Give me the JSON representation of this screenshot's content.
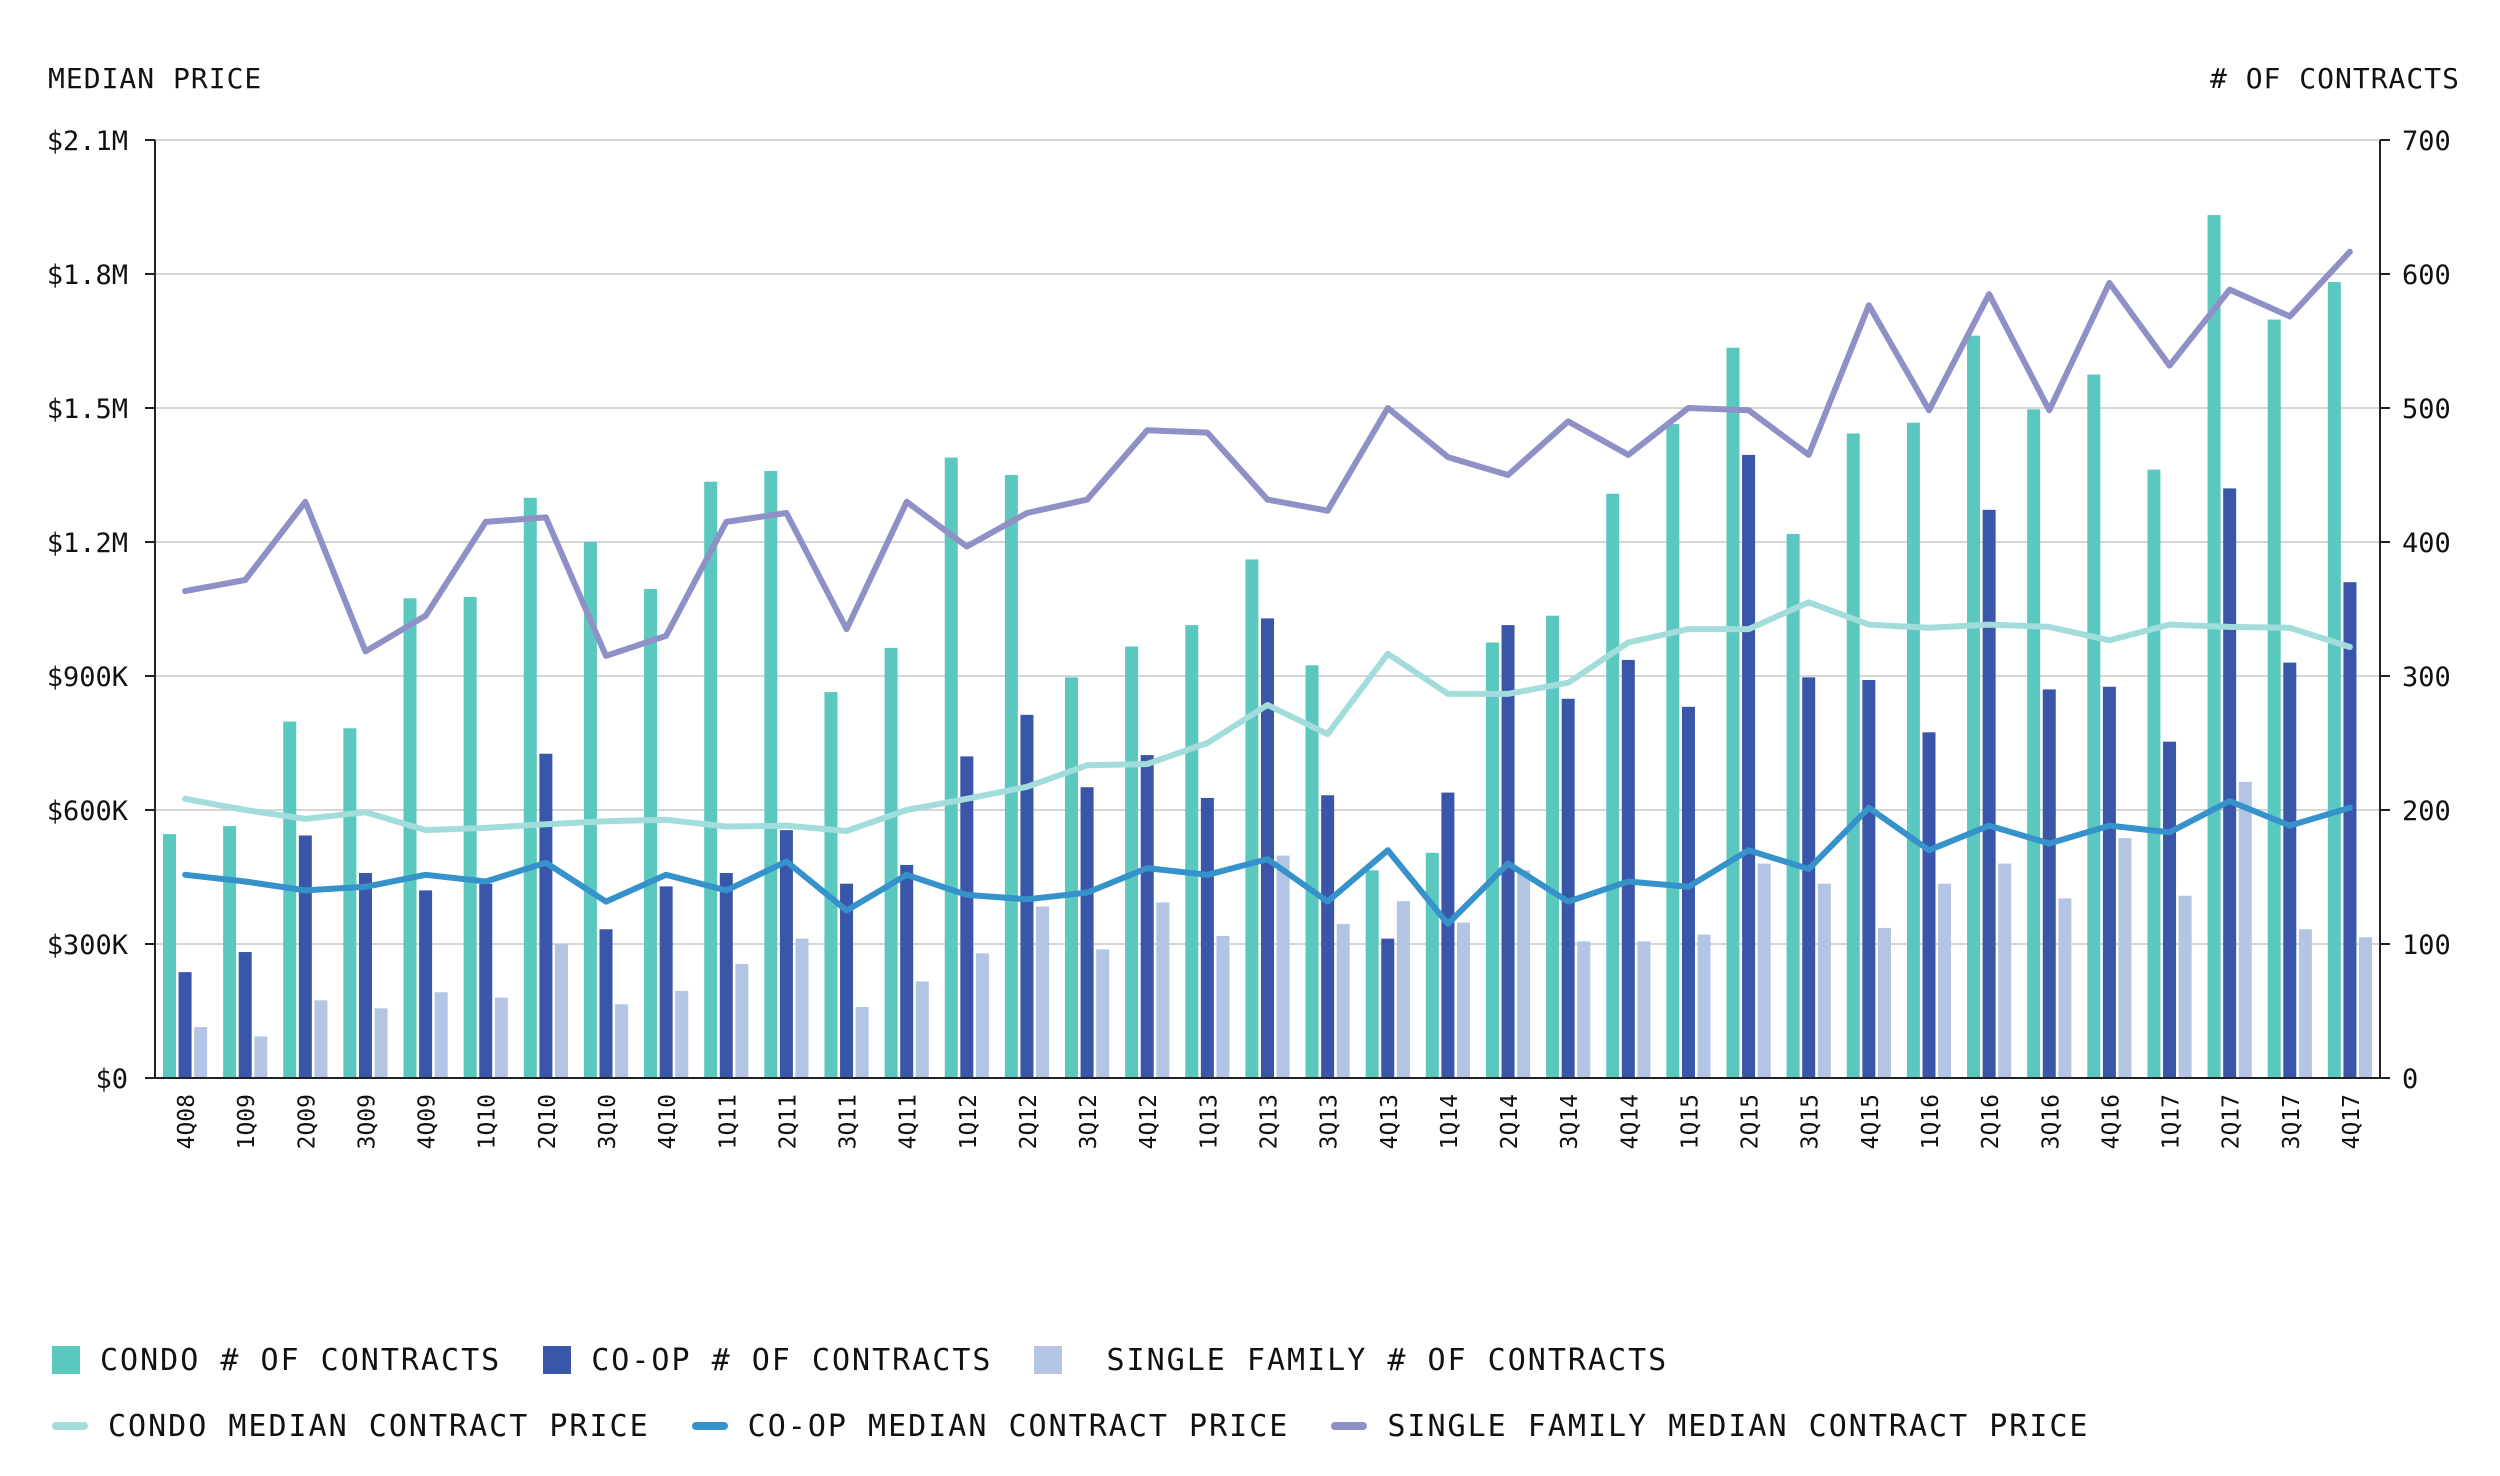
{
  "left_axis_title": "MEDIAN PRICE",
  "right_axis_title": "# OF CONTRACTS",
  "colors": {
    "condo_bar": "#5BC8C0",
    "coop_bar": "#3A56A8",
    "sf_bar": "#B3C4E4",
    "condo_line": "#A2DDDB",
    "coop_line": "#3592CB",
    "sf_line": "#8E90C6",
    "grid": "#d6d6d6",
    "axis": "#222222"
  },
  "legend": {
    "condo_contracts": "CONDO # OF CONTRACTS",
    "coop_contracts": "CO-OP # OF CONTRACTS",
    "sf_contracts": "SINGLE FAMILY # OF CONTRACTS",
    "condo_price": "CONDO MEDIAN CONTRACT PRICE",
    "coop_price": "CO-OP MEDIAN CONTRACT PRICE",
    "sf_price": "SINGLE FAMILY MEDIAN CONTRACT PRICE"
  },
  "chart_data": {
    "type": "bar",
    "categories": [
      "4Q08",
      "1Q09",
      "2Q09",
      "3Q09",
      "4Q09",
      "1Q10",
      "2Q10",
      "3Q10",
      "4Q10",
      "1Q11",
      "2Q11",
      "3Q11",
      "4Q11",
      "1Q12",
      "2Q12",
      "3Q12",
      "4Q12",
      "1Q13",
      "2Q13",
      "3Q13",
      "4Q13",
      "1Q14",
      "2Q14",
      "3Q14",
      "4Q14",
      "1Q15",
      "2Q15",
      "3Q15",
      "4Q15",
      "1Q16",
      "2Q16",
      "3Q16",
      "4Q16",
      "1Q17",
      "2Q17",
      "3Q17",
      "4Q17"
    ],
    "left_axis": {
      "min": 0,
      "max": 2100000,
      "ticks": [
        0,
        300000,
        600000,
        900000,
        1200000,
        1500000,
        1800000,
        2100000
      ],
      "tick_labels": [
        "$0",
        "$300K",
        "$600K",
        "$900K",
        "$1.2M",
        "$1.5M",
        "$1.8M",
        "$2.1M"
      ]
    },
    "right_axis": {
      "min": 0,
      "max": 700,
      "ticks": [
        0,
        100,
        200,
        300,
        400,
        500,
        600,
        700
      ],
      "tick_labels": [
        "0",
        "100",
        "200",
        "300",
        "400",
        "500",
        "600",
        "700"
      ]
    },
    "grid": true,
    "legend_position": "bottom",
    "bar_series": [
      {
        "key": "condo_contracts",
        "color_key": "condo_bar",
        "values": [
          182,
          188,
          266,
          261,
          358,
          359,
          433,
          400,
          365,
          445,
          453,
          288,
          321,
          463,
          450,
          299,
          322,
          338,
          387,
          308,
          155,
          168,
          325,
          345,
          436,
          488,
          545,
          406,
          481,
          489,
          554,
          499,
          525,
          454,
          644,
          566,
          594
        ]
      },
      {
        "key": "coop_contracts",
        "color_key": "coop_bar",
        "values": [
          79,
          94,
          181,
          153,
          140,
          145,
          242,
          111,
          143,
          153,
          185,
          145,
          159,
          240,
          271,
          217,
          241,
          209,
          343,
          211,
          104,
          213,
          338,
          283,
          312,
          277,
          465,
          299,
          297,
          258,
          424,
          290,
          292,
          251,
          440,
          310,
          370
        ]
      },
      {
        "key": "sf_contracts",
        "color_key": "sf_bar",
        "values": [
          38,
          31,
          58,
          52,
          64,
          60,
          100,
          55,
          65,
          85,
          104,
          53,
          72,
          93,
          128,
          96,
          131,
          106,
          166,
          115,
          132,
          116,
          155,
          102,
          102,
          107,
          160,
          145,
          112,
          145,
          160,
          134,
          179,
          136,
          221,
          111,
          105
        ]
      }
    ],
    "line_series": [
      {
        "key": "condo_price",
        "color_key": "condo_line",
        "values": [
          625000,
          600000,
          580000,
          595000,
          555000,
          560000,
          568000,
          575000,
          578000,
          563000,
          565000,
          553000,
          600000,
          625000,
          652000,
          700000,
          703000,
          750000,
          835000,
          770000,
          950000,
          860000,
          860000,
          885000,
          975000,
          1005000,
          1005000,
          1065000,
          1015000,
          1008000,
          1015000,
          1010000,
          980000,
          1015000,
          1010000,
          1008000,
          965000
        ]
      },
      {
        "key": "coop_price",
        "color_key": "coop_line",
        "values": [
          455000,
          440000,
          420000,
          428000,
          455000,
          440000,
          482000,
          395000,
          455000,
          420000,
          485000,
          375000,
          455000,
          410000,
          400000,
          415000,
          470000,
          455000,
          490000,
          395000,
          510000,
          345000,
          480000,
          395000,
          440000,
          428000,
          510000,
          468000,
          605000,
          510000,
          565000,
          525000,
          565000,
          550000,
          620000,
          565000,
          605000
        ]
      },
      {
        "key": "sf_price",
        "color_key": "sf_line",
        "values": [
          1090000,
          1115000,
          1290000,
          955000,
          1035000,
          1245000,
          1255000,
          945000,
          990000,
          1245000,
          1265000,
          1005000,
          1290000,
          1190000,
          1265000,
          1295000,
          1450000,
          1445000,
          1295000,
          1270000,
          1500000,
          1390000,
          1350000,
          1470000,
          1395000,
          1500000,
          1495000,
          1395000,
          1730000,
          1495000,
          1755000,
          1495000,
          1780000,
          1595000,
          1765000,
          1705000,
          1850000
        ]
      }
    ]
  }
}
